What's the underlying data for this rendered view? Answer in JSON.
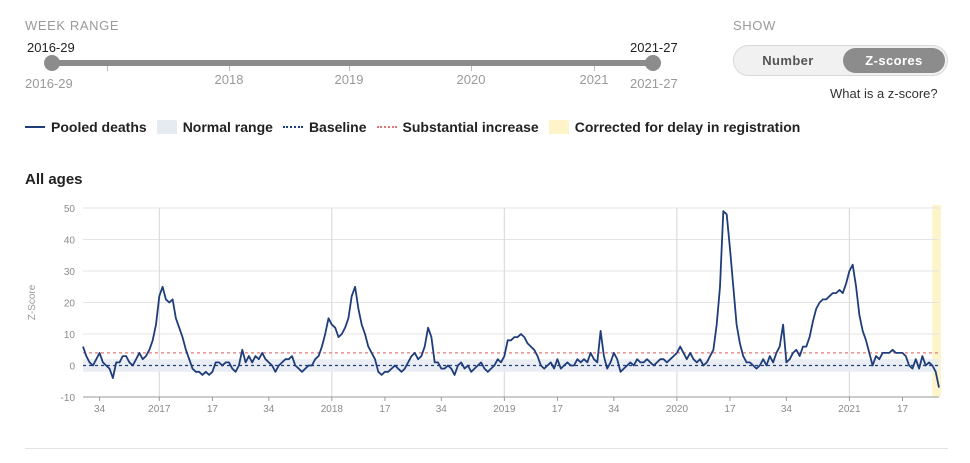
{
  "week_range": {
    "label": "WEEK RANGE",
    "start_value": "2016-29",
    "end_value": "2021-27",
    "start_label": "2016-29",
    "end_label": "2021-27",
    "years": [
      "2018",
      "2019",
      "2020",
      "2021"
    ]
  },
  "show": {
    "label": "SHOW",
    "options": [
      "Number",
      "Z-scores"
    ],
    "selected": "Z-scores",
    "help_link": "What is a z-score?"
  },
  "legend": [
    {
      "key": "pooled",
      "label": "Pooled deaths"
    },
    {
      "key": "normal",
      "label": "Normal range"
    },
    {
      "key": "baseline",
      "label": "Baseline"
    },
    {
      "key": "substantial",
      "label": "Substantial increase"
    },
    {
      "key": "corrected",
      "label": "Corrected for delay in registration"
    }
  ],
  "colors": {
    "series": "#1f3d7a",
    "baseline": "#1f3d7a",
    "substantial": "#e07a7a",
    "normal_band": "#e6ebf2",
    "corrected": "#fdf5c9",
    "grid": "#e4e4e4",
    "year_line": "#dcdcdc"
  },
  "chart_data": {
    "type": "line",
    "title": "All ages",
    "xlabel": "",
    "ylabel": "Z-Score",
    "ylim": [
      -10,
      50
    ],
    "yticks": [
      50,
      40,
      30,
      20,
      10,
      0,
      -10
    ],
    "baseline": 0,
    "substantial_increase": 4,
    "normal_range": [
      -2,
      2
    ],
    "week_start": 1,
    "week_end": 259,
    "corrected_from_week": 257,
    "xticks": [
      {
        "week": 6,
        "label": "34"
      },
      {
        "week": 24,
        "label": "2017"
      },
      {
        "week": 40,
        "label": "17"
      },
      {
        "week": 57,
        "label": "34"
      },
      {
        "week": 76,
        "label": "2018"
      },
      {
        "week": 92,
        "label": "17"
      },
      {
        "week": 109,
        "label": "34"
      },
      {
        "week": 128,
        "label": "2019"
      },
      {
        "week": 144,
        "label": "17"
      },
      {
        "week": 161,
        "label": "34"
      },
      {
        "week": 180,
        "label": "2020"
      },
      {
        "week": 196,
        "label": "17"
      },
      {
        "week": 213,
        "label": "34"
      },
      {
        "week": 232,
        "label": "2021"
      },
      {
        "week": 248,
        "label": "17"
      }
    ],
    "year_lines": [
      24,
      76,
      128,
      180,
      232
    ],
    "series": [
      {
        "name": "Pooled deaths",
        "points": [
          [
            1,
            6
          ],
          [
            2,
            3
          ],
          [
            3,
            1
          ],
          [
            4,
            0
          ],
          [
            5,
            2
          ],
          [
            6,
            4
          ],
          [
            7,
            1
          ],
          [
            8,
            0
          ],
          [
            9,
            -1
          ],
          [
            10,
            -4
          ],
          [
            11,
            1
          ],
          [
            12,
            1
          ],
          [
            13,
            3
          ],
          [
            14,
            3
          ],
          [
            15,
            1
          ],
          [
            16,
            0
          ],
          [
            17,
            2
          ],
          [
            18,
            4
          ],
          [
            19,
            2
          ],
          [
            20,
            3
          ],
          [
            21,
            5
          ],
          [
            22,
            8
          ],
          [
            23,
            13
          ],
          [
            24,
            22
          ],
          [
            25,
            25
          ],
          [
            26,
            21
          ],
          [
            27,
            20
          ],
          [
            28,
            21
          ],
          [
            29,
            15
          ],
          [
            30,
            12
          ],
          [
            31,
            9
          ],
          [
            32,
            5
          ],
          [
            33,
            2
          ],
          [
            34,
            -1
          ],
          [
            35,
            -2
          ],
          [
            36,
            -2
          ],
          [
            37,
            -3
          ],
          [
            38,
            -2
          ],
          [
            39,
            -3
          ],
          [
            40,
            -2
          ],
          [
            41,
            1
          ],
          [
            42,
            1
          ],
          [
            43,
            0
          ],
          [
            44,
            1
          ],
          [
            45,
            1
          ],
          [
            46,
            -1
          ],
          [
            47,
            -2
          ],
          [
            48,
            0
          ],
          [
            49,
            5
          ],
          [
            50,
            1
          ],
          [
            51,
            3
          ],
          [
            52,
            1
          ],
          [
            53,
            3
          ],
          [
            54,
            2
          ],
          [
            55,
            4
          ],
          [
            56,
            2
          ],
          [
            57,
            1
          ],
          [
            58,
            0
          ],
          [
            59,
            -2
          ],
          [
            60,
            0
          ],
          [
            61,
            1
          ],
          [
            62,
            2
          ],
          [
            63,
            2
          ],
          [
            64,
            3
          ],
          [
            65,
            0
          ],
          [
            66,
            -1
          ],
          [
            67,
            -2
          ],
          [
            68,
            -1
          ],
          [
            69,
            0
          ],
          [
            70,
            0
          ],
          [
            71,
            2
          ],
          [
            72,
            3
          ],
          [
            73,
            6
          ],
          [
            74,
            10
          ],
          [
            75,
            15
          ],
          [
            76,
            13
          ],
          [
            77,
            12
          ],
          [
            78,
            9
          ],
          [
            79,
            10
          ],
          [
            80,
            12
          ],
          [
            81,
            15
          ],
          [
            82,
            22
          ],
          [
            83,
            25
          ],
          [
            84,
            18
          ],
          [
            85,
            13
          ],
          [
            86,
            10
          ],
          [
            87,
            6
          ],
          [
            88,
            4
          ],
          [
            89,
            2
          ],
          [
            90,
            -2
          ],
          [
            91,
            -3
          ],
          [
            92,
            -2
          ],
          [
            93,
            -2
          ],
          [
            94,
            -1
          ],
          [
            95,
            0
          ],
          [
            96,
            -1
          ],
          [
            97,
            -2
          ],
          [
            98,
            -1
          ],
          [
            99,
            1
          ],
          [
            100,
            3
          ],
          [
            101,
            4
          ],
          [
            102,
            2
          ],
          [
            103,
            3
          ],
          [
            104,
            6
          ],
          [
            105,
            12
          ],
          [
            106,
            9
          ],
          [
            107,
            1
          ],
          [
            108,
            1
          ],
          [
            109,
            -1
          ],
          [
            110,
            -1
          ],
          [
            111,
            0
          ],
          [
            112,
            -1
          ],
          [
            113,
            -3
          ],
          [
            114,
            0
          ],
          [
            115,
            1
          ],
          [
            116,
            -1
          ],
          [
            117,
            0
          ],
          [
            118,
            -2
          ],
          [
            119,
            -1
          ],
          [
            120,
            0
          ],
          [
            121,
            1
          ],
          [
            122,
            -1
          ],
          [
            123,
            -2
          ],
          [
            124,
            -1
          ],
          [
            125,
            0
          ],
          [
            126,
            2
          ],
          [
            127,
            1
          ],
          [
            128,
            3
          ],
          [
            129,
            8
          ],
          [
            130,
            8
          ],
          [
            131,
            9
          ],
          [
            132,
            9
          ],
          [
            133,
            10
          ],
          [
            134,
            9
          ],
          [
            135,
            7
          ],
          [
            136,
            6
          ],
          [
            137,
            5
          ],
          [
            138,
            3
          ],
          [
            139,
            0
          ],
          [
            140,
            -1
          ],
          [
            141,
            0
          ],
          [
            142,
            1
          ],
          [
            143,
            -1
          ],
          [
            144,
            2
          ],
          [
            145,
            -1
          ],
          [
            146,
            0
          ],
          [
            147,
            1
          ],
          [
            148,
            0
          ],
          [
            149,
            0
          ],
          [
            150,
            2
          ],
          [
            151,
            1
          ],
          [
            152,
            2
          ],
          [
            153,
            1
          ],
          [
            154,
            4
          ],
          [
            155,
            2
          ],
          [
            156,
            1
          ],
          [
            157,
            11
          ],
          [
            158,
            3
          ],
          [
            159,
            -1
          ],
          [
            160,
            1
          ],
          [
            161,
            4
          ],
          [
            162,
            2
          ],
          [
            163,
            -2
          ],
          [
            164,
            -1
          ],
          [
            165,
            0
          ],
          [
            166,
            1
          ],
          [
            167,
            0
          ],
          [
            168,
            2
          ],
          [
            169,
            1
          ],
          [
            170,
            1
          ],
          [
            171,
            2
          ],
          [
            172,
            1
          ],
          [
            173,
            0
          ],
          [
            174,
            1
          ],
          [
            175,
            2
          ],
          [
            176,
            2
          ],
          [
            177,
            1
          ],
          [
            178,
            2
          ],
          [
            179,
            3
          ],
          [
            180,
            4
          ],
          [
            181,
            6
          ],
          [
            182,
            4
          ],
          [
            183,
            2
          ],
          [
            184,
            4
          ],
          [
            185,
            2
          ],
          [
            186,
            1
          ],
          [
            187,
            2
          ],
          [
            188,
            0
          ],
          [
            189,
            1
          ],
          [
            190,
            3
          ],
          [
            191,
            5
          ],
          [
            192,
            13
          ],
          [
            193,
            25
          ],
          [
            194,
            49
          ],
          [
            195,
            48
          ],
          [
            196,
            37
          ],
          [
            197,
            25
          ],
          [
            198,
            13
          ],
          [
            199,
            7
          ],
          [
            200,
            3
          ],
          [
            201,
            1
          ],
          [
            202,
            1
          ],
          [
            203,
            0
          ],
          [
            204,
            -1
          ],
          [
            205,
            0
          ],
          [
            206,
            2
          ],
          [
            207,
            0
          ],
          [
            208,
            3
          ],
          [
            209,
            1
          ],
          [
            210,
            4
          ],
          [
            211,
            6
          ],
          [
            212,
            13
          ],
          [
            213,
            1
          ],
          [
            214,
            2
          ],
          [
            215,
            4
          ],
          [
            216,
            5
          ],
          [
            217,
            3
          ],
          [
            218,
            6
          ],
          [
            219,
            6
          ],
          [
            220,
            9
          ],
          [
            221,
            14
          ],
          [
            222,
            18
          ],
          [
            223,
            20
          ],
          [
            224,
            21
          ],
          [
            225,
            21
          ],
          [
            226,
            22
          ],
          [
            227,
            23
          ],
          [
            228,
            23
          ],
          [
            229,
            24
          ],
          [
            230,
            23
          ],
          [
            231,
            26
          ],
          [
            232,
            30
          ],
          [
            233,
            32
          ],
          [
            234,
            25
          ],
          [
            235,
            16
          ],
          [
            236,
            11
          ],
          [
            237,
            8
          ],
          [
            238,
            4
          ],
          [
            239,
            0
          ],
          [
            240,
            3
          ],
          [
            241,
            2
          ],
          [
            242,
            4
          ],
          [
            243,
            4
          ],
          [
            244,
            4
          ],
          [
            245,
            5
          ],
          [
            246,
            4
          ],
          [
            247,
            4
          ],
          [
            248,
            4
          ],
          [
            249,
            3
          ],
          [
            250,
            0
          ],
          [
            251,
            -1
          ],
          [
            252,
            2
          ],
          [
            253,
            -1
          ],
          [
            254,
            3
          ],
          [
            255,
            0
          ],
          [
            256,
            1
          ],
          [
            257,
            0
          ],
          [
            258,
            -2
          ],
          [
            259,
            -7
          ]
        ]
      }
    ]
  }
}
